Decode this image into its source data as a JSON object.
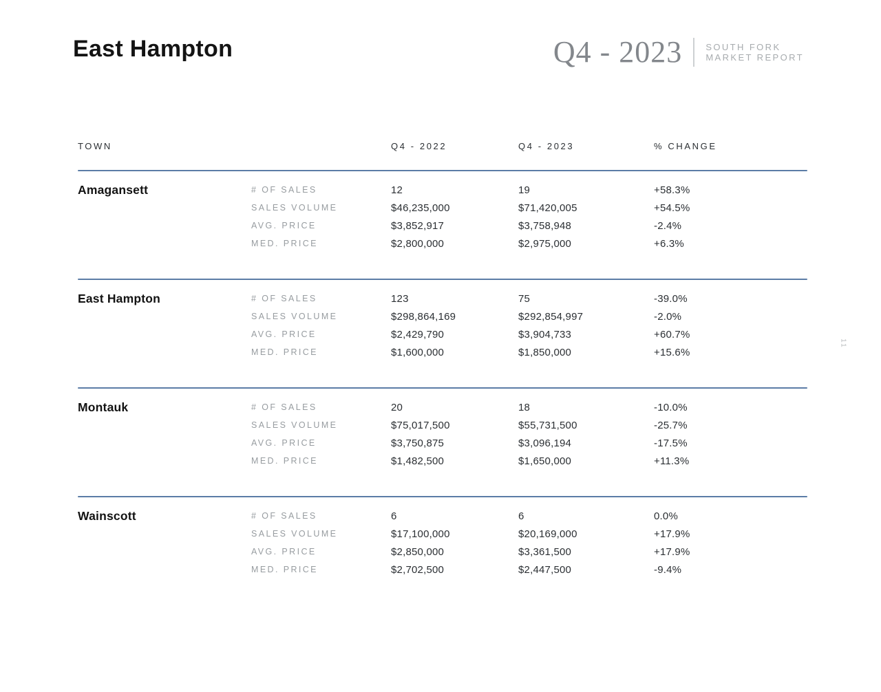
{
  "header": {
    "title": "East Hampton",
    "report_quarter": "Q4 - 2023",
    "report_name_line1": "SOUTH FORK",
    "report_name_line2": "MARKET REPORT"
  },
  "page_number": "11",
  "table": {
    "columns": {
      "town": "TOWN",
      "q2022": "Q4 - 2022",
      "q2023": "Q4 - 2023",
      "change": "% CHANGE"
    },
    "towns": [
      {
        "name": "Amagansett",
        "rows": [
          {
            "label": "# OF SALES",
            "q2022": "12",
            "q2023": "19",
            "change": "+58.3%"
          },
          {
            "label": "SALES VOLUME",
            "q2022": "$46,235,000",
            "q2023": "$71,420,005",
            "change": "+54.5%"
          },
          {
            "label": "AVG. PRICE",
            "q2022": "$3,852,917",
            "q2023": "$3,758,948",
            "change": "-2.4%"
          },
          {
            "label": "MED. PRICE",
            "q2022": "$2,800,000",
            "q2023": "$2,975,000",
            "change": "+6.3%"
          }
        ]
      },
      {
        "name": "East Hampton",
        "rows": [
          {
            "label": "# OF SALES",
            "q2022": "123",
            "q2023": "75",
            "change": "-39.0%"
          },
          {
            "label": "SALES VOLUME",
            "q2022": "$298,864,169",
            "q2023": "$292,854,997",
            "change": "-2.0%"
          },
          {
            "label": "AVG. PRICE",
            "q2022": "$2,429,790",
            "q2023": "$3,904,733",
            "change": "+60.7%"
          },
          {
            "label": "MED. PRICE",
            "q2022": "$1,600,000",
            "q2023": "$1,850,000",
            "change": "+15.6%"
          }
        ]
      },
      {
        "name": "Montauk",
        "rows": [
          {
            "label": "# OF SALES",
            "q2022": "20",
            "q2023": "18",
            "change": "-10.0%"
          },
          {
            "label": "SALES VOLUME",
            "q2022": "$75,017,500",
            "q2023": "$55,731,500",
            "change": "-25.7%"
          },
          {
            "label": "AVG. PRICE",
            "q2022": "$3,750,875",
            "q2023": "$3,096,194",
            "change": "-17.5%"
          },
          {
            "label": "MED. PRICE",
            "q2022": "$1,482,500",
            "q2023": "$1,650,000",
            "change": "+11.3%"
          }
        ]
      },
      {
        "name": "Wainscott",
        "rows": [
          {
            "label": "# OF SALES",
            "q2022": "6",
            "q2023": "6",
            "change": "0.0%"
          },
          {
            "label": "SALES VOLUME",
            "q2022": "$17,100,000",
            "q2023": "$20,169,000",
            "change": "+17.9%"
          },
          {
            "label": "AVG. PRICE",
            "q2022": "$2,850,000",
            "q2023": "$3,361,500",
            "change": "+17.9%"
          },
          {
            "label": "MED. PRICE",
            "q2022": "$2,702,500",
            "q2023": "$2,447,500",
            "change": "-9.4%"
          }
        ]
      }
    ]
  },
  "colors": {
    "divider_blue": "#5b7ca6",
    "label_gray": "#979ca0",
    "text_dark": "#2b2f33",
    "brand_gray": "#83878c",
    "brand_light_gray": "#a7abae"
  }
}
